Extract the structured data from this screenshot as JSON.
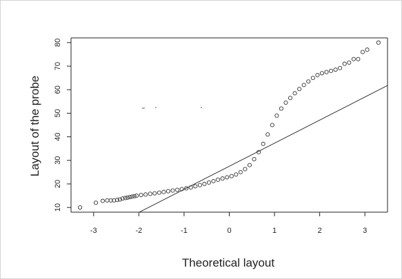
{
  "chart_data": {
    "type": "scatter",
    "title": "",
    "xlabel": "Theoretical layout",
    "ylabel": "Layout of the probe",
    "xlim": [
      -3.5,
      3.5
    ],
    "ylim": [
      8,
      82
    ],
    "x_ticks": [
      -3,
      -2,
      -1,
      0,
      1,
      2,
      3
    ],
    "y_ticks": [
      10,
      20,
      30,
      40,
      50,
      60,
      70,
      80
    ],
    "grid": false,
    "legend": "none",
    "series": [
      {
        "marker": "open-circle",
        "points": [
          [
            -3.3,
            10
          ],
          [
            -2.95,
            12
          ],
          [
            -2.8,
            12.8
          ],
          [
            -2.7,
            13
          ],
          [
            -2.62,
            13
          ],
          [
            -2.55,
            13
          ],
          [
            -2.48,
            13.2
          ],
          [
            -2.42,
            13.4
          ],
          [
            -2.36,
            13.8
          ],
          [
            -2.3,
            14
          ],
          [
            -2.25,
            14.2
          ],
          [
            -2.2,
            14.4
          ],
          [
            -2.15,
            14.6
          ],
          [
            -2.1,
            14.8
          ],
          [
            -2.05,
            15
          ],
          [
            -1.95,
            15.3
          ],
          [
            -1.85,
            15.5
          ],
          [
            -1.75,
            15.8
          ],
          [
            -1.65,
            16
          ],
          [
            -1.55,
            16.3
          ],
          [
            -1.45,
            16.6
          ],
          [
            -1.35,
            16.9
          ],
          [
            -1.25,
            17.2
          ],
          [
            -1.15,
            17.5
          ],
          [
            -1.05,
            17.8
          ],
          [
            -0.95,
            18.1
          ],
          [
            -0.85,
            18.5
          ],
          [
            -0.75,
            19
          ],
          [
            -0.65,
            19.5
          ],
          [
            -0.55,
            20
          ],
          [
            -0.45,
            20.6
          ],
          [
            -0.35,
            21.2
          ],
          [
            -0.25,
            21.8
          ],
          [
            -0.15,
            22.3
          ],
          [
            -0.05,
            22.8
          ],
          [
            0.05,
            23.3
          ],
          [
            0.15,
            24
          ],
          [
            0.25,
            25
          ],
          [
            0.35,
            26.3
          ],
          [
            0.45,
            28
          ],
          [
            0.55,
            30.5
          ],
          [
            0.65,
            33.5
          ],
          [
            0.75,
            37
          ],
          [
            0.85,
            41
          ],
          [
            0.95,
            45
          ],
          [
            1.05,
            49
          ],
          [
            1.15,
            52
          ],
          [
            1.25,
            54.5
          ],
          [
            1.35,
            56.5
          ],
          [
            1.45,
            58.5
          ],
          [
            1.55,
            60.3
          ],
          [
            1.65,
            62
          ],
          [
            1.75,
            63.5
          ],
          [
            1.85,
            65
          ],
          [
            1.95,
            66.2
          ],
          [
            2.05,
            67
          ],
          [
            2.15,
            67.5
          ],
          [
            2.25,
            68
          ],
          [
            2.35,
            68.5
          ],
          [
            2.45,
            69.2
          ],
          [
            2.55,
            71
          ],
          [
            2.65,
            71.5
          ],
          [
            2.75,
            73
          ],
          [
            2.85,
            73
          ],
          [
            2.95,
            76
          ],
          [
            3.05,
            77
          ],
          [
            3.3,
            80
          ]
        ]
      }
    ],
    "reference_line": {
      "slope": 9.8,
      "intercept": 27.5
    }
  },
  "colors": {
    "points": "#333333",
    "line": "#333333",
    "axis": "#222222"
  }
}
